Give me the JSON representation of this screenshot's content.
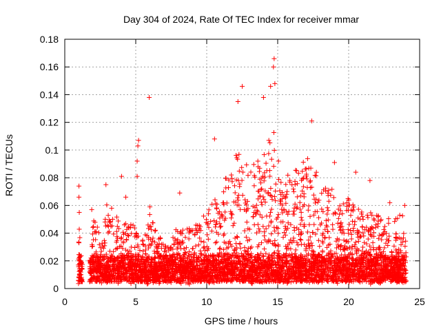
{
  "chart_data": {
    "type": "scatter",
    "title": "Day 304 of 2024, Rate Of TEC Index for receiver mmar",
    "xlabel": "GPS time / hours",
    "ylabel": "ROTI / TECUs",
    "xlim": [
      0,
      25
    ],
    "ylim": [
      0,
      0.18
    ],
    "xticks": [
      0,
      5,
      10,
      15,
      20,
      25
    ],
    "xtick_labels": [
      "0",
      "5",
      "10",
      "15",
      "20",
      "25"
    ],
    "yticks": [
      0,
      0.02,
      0.04,
      0.06,
      0.08,
      0.1,
      0.12,
      0.14,
      0.16,
      0.18
    ],
    "ytick_labels": [
      "0",
      "0.02",
      "0.04",
      "0.06",
      "0.08",
      "0.1",
      "0.12",
      "0.14",
      "0.16",
      "0.18"
    ],
    "grid": true,
    "marker": "plus",
    "color": "#ff0000",
    "series": [
      {
        "name": "ROTI",
        "x_range": [
          0.95,
          24.05
        ],
        "baseline_range": [
          0.003,
          0.02
        ],
        "highlighted_points": [
          {
            "x": 1.0,
            "y": 0.074
          },
          {
            "x": 1.0,
            "y": 0.066
          },
          {
            "x": 1.0,
            "y": 0.033
          },
          {
            "x": 1.9,
            "y": 0.057
          },
          {
            "x": 2.9,
            "y": 0.075
          },
          {
            "x": 3.3,
            "y": 0.058
          },
          {
            "x": 4.0,
            "y": 0.081
          },
          {
            "x": 4.3,
            "y": 0.066
          },
          {
            "x": 5.2,
            "y": 0.107
          },
          {
            "x": 5.15,
            "y": 0.103
          },
          {
            "x": 5.1,
            "y": 0.092
          },
          {
            "x": 5.1,
            "y": 0.081
          },
          {
            "x": 5.95,
            "y": 0.138
          },
          {
            "x": 6.0,
            "y": 0.059
          },
          {
            "x": 8.1,
            "y": 0.069
          },
          {
            "x": 10.55,
            "y": 0.108
          },
          {
            "x": 12.2,
            "y": 0.135
          },
          {
            "x": 12.5,
            "y": 0.146
          },
          {
            "x": 14.0,
            "y": 0.138
          },
          {
            "x": 14.5,
            "y": 0.146
          },
          {
            "x": 14.7,
            "y": 0.16
          },
          {
            "x": 14.75,
            "y": 0.166
          },
          {
            "x": 14.8,
            "y": 0.148
          },
          {
            "x": 17.4,
            "y": 0.121
          },
          {
            "x": 19.0,
            "y": 0.091
          },
          {
            "x": 20.5,
            "y": 0.084
          },
          {
            "x": 21.5,
            "y": 0.078
          },
          {
            "x": 22.9,
            "y": 0.062
          },
          {
            "x": 23.6,
            "y": 0.053
          },
          {
            "x": 23.95,
            "y": 0.06
          }
        ]
      }
    ]
  }
}
